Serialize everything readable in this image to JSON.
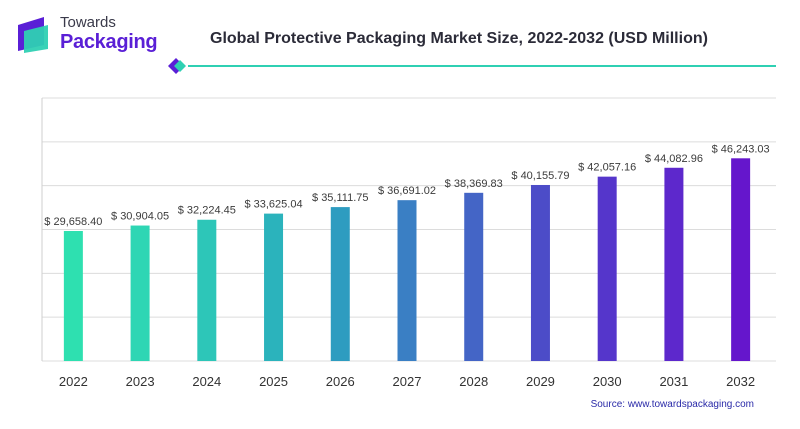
{
  "brand": {
    "line1": "Towards",
    "line2": "Packaging",
    "colors": {
      "primary": "#5a1fd6",
      "accent": "#2fd0b3"
    }
  },
  "source": "Source: www.towardspackaging.com",
  "chart_data": {
    "type": "bar",
    "title": "Global Protective Packaging Market Size, 2022-2032 (USD Million)",
    "xlabel": "",
    "ylabel": "",
    "categories": [
      "2022",
      "2023",
      "2024",
      "2025",
      "2026",
      "2027",
      "2028",
      "2029",
      "2030",
      "2031",
      "2032"
    ],
    "values": [
      29658.4,
      30904.05,
      32224.45,
      33625.04,
      35111.75,
      36691.02,
      38369.83,
      40155.79,
      42057.16,
      44082.96,
      46243.03
    ],
    "labels": [
      "$ 29,658.40",
      "$ 30,904.05",
      "$ 32,224.45",
      "$ 33,625.04",
      "$ 35,111.75",
      "$ 36,691.02",
      "$ 38,369.83",
      "$ 40,155.79",
      "$ 42,057.16",
      "$ 44,082.96",
      "$ 46,243.03"
    ],
    "colors": [
      "#2ee0b0",
      "#2ed6b4",
      "#2dc6b8",
      "#2bb3bc",
      "#2e9cc0",
      "#3a7fc4",
      "#4465c6",
      "#4c4cc8",
      "#5536cb",
      "#5d28cc",
      "#6516cc"
    ],
    "ylim": [
      0,
      60000
    ],
    "grid": true
  }
}
